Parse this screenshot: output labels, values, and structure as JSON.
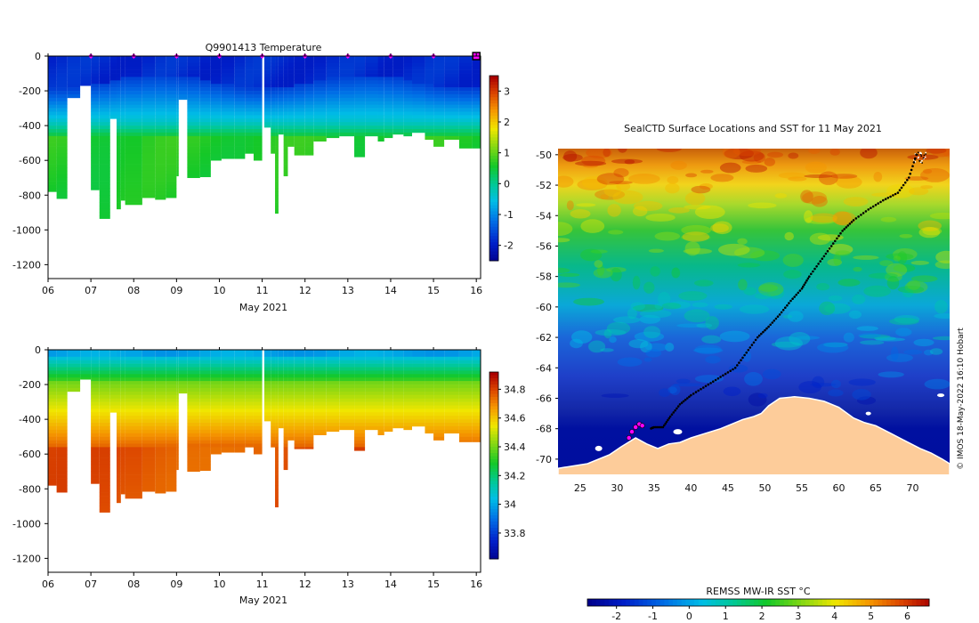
{
  "chart_data": [
    {
      "id": "temperature-section",
      "type": "heatmap",
      "title": "Q9901413  Temperature",
      "xlabel": "May 2021",
      "x_ticks": [
        "06",
        "07",
        "08",
        "09",
        "10",
        "11",
        "12",
        "13",
        "14",
        "15",
        "16"
      ],
      "xlim": [
        6,
        16.1
      ],
      "ylim": [
        -1280,
        0
      ],
      "y_ticks": [
        0,
        -200,
        -400,
        -600,
        -800,
        -1000,
        -1200
      ],
      "profile_markers_day": [
        7,
        8,
        9,
        10,
        11,
        12,
        13,
        14,
        15
      ],
      "colorbar": {
        "min": -2.5,
        "max": 3.5,
        "ticks": [
          3,
          2,
          1,
          0,
          -1,
          -2
        ]
      },
      "profiles": [
        {
          "day": 6.0,
          "width": 0.2,
          "max_depth": -780
        },
        {
          "day": 6.2,
          "width": 0.25,
          "max_depth": -820
        },
        {
          "day": 6.45,
          "width": 0.3,
          "max_depth": -240
        },
        {
          "day": 6.75,
          "width": 0.25,
          "max_depth": -170
        },
        {
          "day": 7.0,
          "width": 0.2,
          "max_depth": -770
        },
        {
          "day": 7.2,
          "width": 0.25,
          "max_depth": -935
        },
        {
          "day": 7.45,
          "width": 0.15,
          "max_depth": -360
        },
        {
          "day": 7.6,
          "width": 0.1,
          "max_depth": -880
        },
        {
          "day": 7.7,
          "width": 0.1,
          "max_depth": -830
        },
        {
          "day": 7.8,
          "width": 0.4,
          "max_depth": -855
        },
        {
          "day": 8.2,
          "width": 0.3,
          "max_depth": -815
        },
        {
          "day": 8.5,
          "width": 0.25,
          "max_depth": -825
        },
        {
          "day": 8.75,
          "width": 0.25,
          "max_depth": -815
        },
        {
          "day": 9.0,
          "width": 0.05,
          "max_depth": -690
        },
        {
          "day": 9.05,
          "width": 0.2,
          "max_depth": -250
        },
        {
          "day": 9.25,
          "width": 0.3,
          "max_depth": -700
        },
        {
          "day": 9.55,
          "width": 0.25,
          "max_depth": -695
        },
        {
          "day": 9.8,
          "width": 0.25,
          "max_depth": -600
        },
        {
          "day": 10.05,
          "width": 0.3,
          "max_depth": -590
        },
        {
          "day": 10.35,
          "width": 0.25,
          "max_depth": -590
        },
        {
          "day": 10.6,
          "width": 0.2,
          "max_depth": -560
        },
        {
          "day": 10.8,
          "width": 0.2,
          "max_depth": -600
        },
        {
          "day": 11.05,
          "width": 0.15,
          "max_depth": -410
        },
        {
          "day": 11.2,
          "width": 0.1,
          "max_depth": -560
        },
        {
          "day": 11.3,
          "width": 0.08,
          "max_depth": -905
        },
        {
          "day": 11.38,
          "width": 0.12,
          "max_depth": -450
        },
        {
          "day": 11.5,
          "width": 0.1,
          "max_depth": -690
        },
        {
          "day": 11.6,
          "width": 0.15,
          "max_depth": -520
        },
        {
          "day": 11.75,
          "width": 0.25,
          "max_depth": -570
        },
        {
          "day": 12.0,
          "width": 0.2,
          "max_depth": -570
        },
        {
          "day": 12.2,
          "width": 0.3,
          "max_depth": -490
        },
        {
          "day": 12.5,
          "width": 0.3,
          "max_depth": -470
        },
        {
          "day": 12.8,
          "width": 0.35,
          "max_depth": -460
        },
        {
          "day": 13.15,
          "width": 0.25,
          "max_depth": -580
        },
        {
          "day": 13.4,
          "width": 0.3,
          "max_depth": -460
        },
        {
          "day": 13.7,
          "width": 0.15,
          "max_depth": -490
        },
        {
          "day": 13.85,
          "width": 0.2,
          "max_depth": -470
        },
        {
          "day": 14.05,
          "width": 0.25,
          "max_depth": -450
        },
        {
          "day": 14.3,
          "width": 0.2,
          "max_depth": -460
        },
        {
          "day": 14.5,
          "width": 0.3,
          "max_depth": -440
        },
        {
          "day": 14.8,
          "width": 0.2,
          "max_depth": -480
        },
        {
          "day": 15.0,
          "width": 0.25,
          "max_depth": -520
        },
        {
          "day": 15.25,
          "width": 0.35,
          "max_depth": -480
        },
        {
          "day": 15.6,
          "width": 0.3,
          "max_depth": -530
        },
        {
          "day": 15.9,
          "width": 0.2,
          "max_depth": -530
        }
      ]
    },
    {
      "id": "salinity-section",
      "type": "heatmap",
      "title": "",
      "xlabel": "May 2021",
      "x_ticks": [
        "06",
        "07",
        "08",
        "09",
        "10",
        "11",
        "12",
        "13",
        "14",
        "15",
        "16"
      ],
      "xlim": [
        6,
        16.1
      ],
      "ylim": [
        -1280,
        0
      ],
      "y_ticks": [
        0,
        -200,
        -400,
        -600,
        -800,
        -1000,
        -1200
      ],
      "colorbar": {
        "min": 33.62,
        "max": 34.92,
        "ticks": [
          34.8,
          34.6,
          34.4,
          34.2,
          34,
          33.8
        ],
        "tick_labels": [
          "34.8",
          "34.6",
          "34.4",
          "34.2",
          "34",
          "33.8"
        ]
      }
    },
    {
      "id": "sst-map",
      "type": "heatmap",
      "title": "SealCTD Surface Locations and SST for 11 May 2021",
      "x_ticks": [
        25,
        30,
        35,
        40,
        45,
        50,
        55,
        60,
        65,
        70
      ],
      "y_ticks": [
        -50,
        -52,
        -54,
        -56,
        -58,
        -60,
        -62,
        -64,
        -66,
        -68,
        -70
      ],
      "xlim": [
        22,
        75
      ],
      "ylim": [
        -71,
        -49.6
      ],
      "colorbar": {
        "label": "REMSS MW-IR SST °C",
        "min": -2.8,
        "max": 6.6,
        "ticks": [
          -2,
          -1,
          0,
          1,
          2,
          3,
          4,
          5,
          6
        ]
      },
      "track": [
        [
          70.5,
          -50.0
        ],
        [
          69.5,
          -51.5
        ],
        [
          68,
          -52.5
        ],
        [
          66,
          -53.0
        ],
        [
          64,
          -53.6
        ],
        [
          62,
          -54.3
        ],
        [
          60.5,
          -55.0
        ],
        [
          59,
          -56.0
        ],
        [
          57.5,
          -57.0
        ],
        [
          56,
          -58.0
        ],
        [
          55,
          -58.8
        ],
        [
          53.5,
          -59.6
        ],
        [
          52,
          -60.5
        ],
        [
          50.5,
          -61.3
        ],
        [
          49,
          -62.0
        ],
        [
          47.5,
          -63.0
        ],
        [
          46,
          -64.0
        ],
        [
          44,
          -64.6
        ],
        [
          42,
          -65.2
        ],
        [
          40,
          -65.8
        ],
        [
          38.5,
          -66.4
        ],
        [
          37.2,
          -67.2
        ],
        [
          36.2,
          -67.9
        ],
        [
          35.0,
          -67.9
        ],
        [
          34.5,
          -68.0
        ]
      ],
      "recent_positions": [
        [
          31.6,
          -68.6
        ],
        [
          32.0,
          -68.2
        ],
        [
          32.5,
          -67.9
        ],
        [
          33.0,
          -67.7
        ],
        [
          33.4,
          -67.8
        ]
      ],
      "credit": "© IMOS 18-May-2022 16:10 Hobart"
    }
  ],
  "colors": {
    "frame": "#000000",
    "marker": "#ff00ff",
    "land": "#fdcc9a",
    "track": "#000000"
  }
}
